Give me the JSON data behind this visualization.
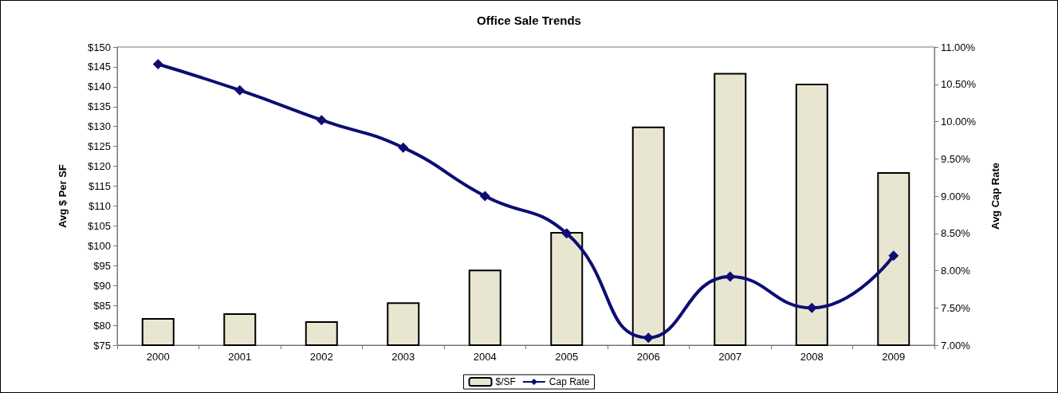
{
  "chart_data": {
    "type": "bar",
    "title": "Office Sale Trends",
    "ylabel": "Avg $ Per SF",
    "y2label": "Avg Cap Rate",
    "categories": [
      "2000",
      "2001",
      "2002",
      "2003",
      "2004",
      "2005",
      "2006",
      "2007",
      "2008",
      "2009"
    ],
    "series": [
      {
        "name": "$/SF",
        "color": "#e8e6d0",
        "values": [
          81.8,
          83,
          81,
          85.8,
          94,
          103.5,
          130,
          143.5,
          140.8,
          118.5
        ]
      },
      {
        "name": "Cap Rate",
        "type": "line",
        "axis": "y2",
        "color": "#0d0d73",
        "marker": "diamond",
        "values": [
          10.77,
          10.42,
          10.02,
          9.65,
          9.0,
          8.5,
          7.1,
          7.92,
          7.5,
          8.2
        ]
      }
    ],
    "ylim": [
      75,
      150
    ],
    "yticks": [
      {
        "value": 75,
        "label": "$75"
      },
      {
        "value": 80,
        "label": "$80"
      },
      {
        "value": 85,
        "label": "$85"
      },
      {
        "value": 90,
        "label": "$90"
      },
      {
        "value": 95,
        "label": "$95"
      },
      {
        "value": 100,
        "label": "$100"
      },
      {
        "value": 105,
        "label": "$105"
      },
      {
        "value": 110,
        "label": "$110"
      },
      {
        "value": 115,
        "label": "$115"
      },
      {
        "value": 120,
        "label": "$120"
      },
      {
        "value": 125,
        "label": "$125"
      },
      {
        "value": 130,
        "label": "$130"
      },
      {
        "value": 135,
        "label": "$135"
      },
      {
        "value": 140,
        "label": "$140"
      },
      {
        "value": 145,
        "label": "$145"
      },
      {
        "value": 150,
        "label": "$150"
      }
    ],
    "y2lim": [
      7,
      11
    ],
    "y2ticks": [
      {
        "value": 7,
        "label": "7.00%"
      },
      {
        "value": 7.5,
        "label": "7.50%"
      },
      {
        "value": 8,
        "label": "8.00%"
      },
      {
        "value": 8.5,
        "label": "8.50%"
      },
      {
        "value": 9,
        "label": "9.00%"
      },
      {
        "value": 9.5,
        "label": "9.50%"
      },
      {
        "value": 10,
        "label": "10.00%"
      },
      {
        "value": 10.5,
        "label": "10.50%"
      },
      {
        "value": 11,
        "label": "11.00%"
      }
    ],
    "grid": false,
    "legend": "bottom"
  }
}
